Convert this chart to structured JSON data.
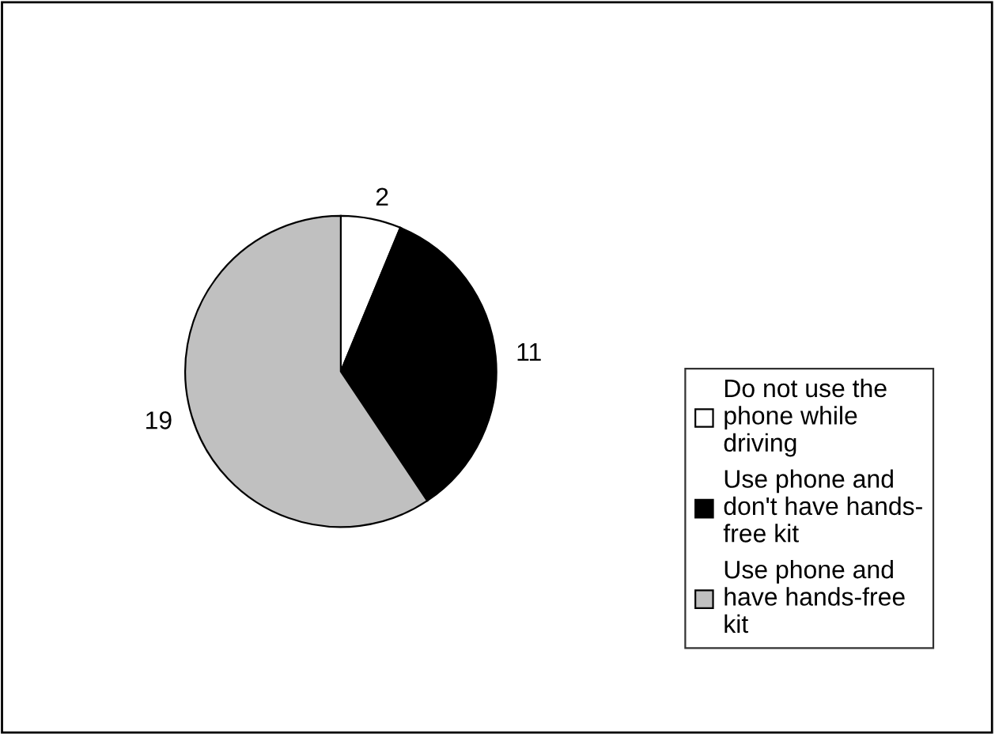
{
  "chart_data": {
    "type": "pie",
    "categories": [
      "Do not use the\nphone while\ndriving",
      "Use phone and\ndon't have hands-\nfree kit",
      "Use phone and\nhave hands-free\nkit"
    ],
    "values": [
      2,
      11,
      19
    ],
    "colors": [
      "#ffffff",
      "#000000",
      "#c0c0c0"
    ],
    "data_labels": true,
    "legend": "right"
  }
}
